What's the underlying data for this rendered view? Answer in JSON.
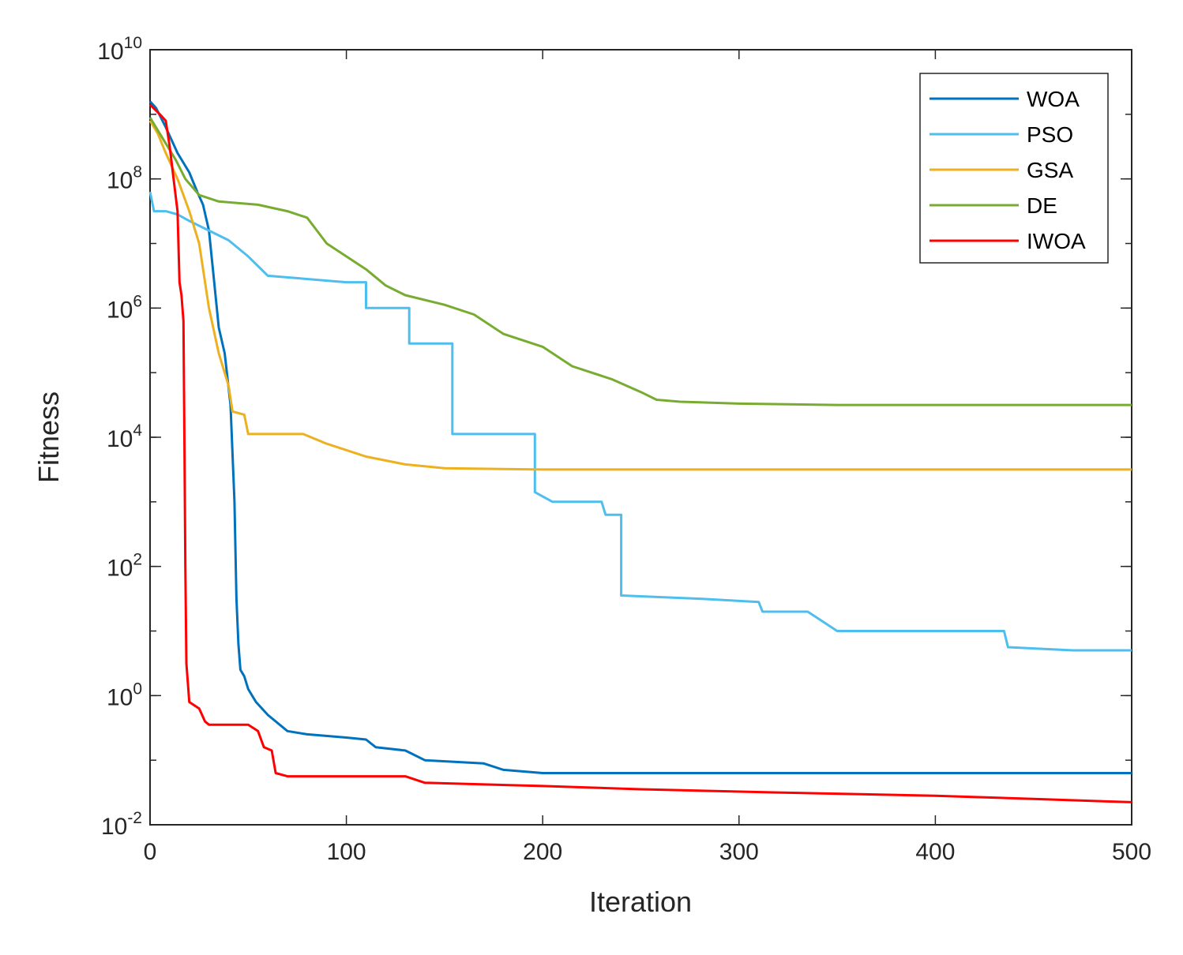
{
  "chart_data": {
    "type": "line",
    "title": "",
    "xlabel": "Iteration",
    "ylabel": "Fitness",
    "xlim": [
      0,
      500
    ],
    "ylim_exponents": [
      -2,
      10
    ],
    "y_scale": "log",
    "x_ticks": [
      0,
      100,
      200,
      300,
      400,
      500
    ],
    "y_ticks": [
      {
        "base": "10",
        "exp": "-2",
        "value": -2
      },
      {
        "base": "10",
        "exp": "0",
        "value": 0
      },
      {
        "base": "10",
        "exp": "2",
        "value": 2
      },
      {
        "base": "10",
        "exp": "4",
        "value": 4
      },
      {
        "base": "10",
        "exp": "6",
        "value": 6
      },
      {
        "base": "10",
        "exp": "8",
        "value": 8
      },
      {
        "base": "10",
        "exp": "10",
        "value": 10
      }
    ],
    "grid": false,
    "legend_position": "top-right",
    "series": [
      {
        "name": "WOA",
        "color": "#0072BD",
        "points": [
          [
            0,
            9.2
          ],
          [
            3,
            9.1
          ],
          [
            8,
            8.8
          ],
          [
            14,
            8.4
          ],
          [
            20,
            8.1
          ],
          [
            24,
            7.8
          ],
          [
            27,
            7.6
          ],
          [
            30,
            7.2
          ],
          [
            32,
            6.6
          ],
          [
            35,
            5.7
          ],
          [
            38,
            5.3
          ],
          [
            41,
            4.5
          ],
          [
            43,
            3.0
          ],
          [
            44,
            1.5
          ],
          [
            45,
            0.8
          ],
          [
            46,
            0.4
          ],
          [
            48,
            0.3
          ],
          [
            50,
            0.1
          ],
          [
            54,
            -0.1
          ],
          [
            60,
            -0.3
          ],
          [
            70,
            -0.55
          ],
          [
            80,
            -0.6
          ],
          [
            100,
            -0.65
          ],
          [
            110,
            -0.68
          ],
          [
            115,
            -0.8
          ],
          [
            130,
            -0.85
          ],
          [
            140,
            -1.0
          ],
          [
            170,
            -1.05
          ],
          [
            180,
            -1.15
          ],
          [
            200,
            -1.2
          ],
          [
            500,
            -1.2
          ]
        ]
      },
      {
        "name": "PSO",
        "color": "#4DBEEE",
        "points": [
          [
            0,
            7.8
          ],
          [
            2,
            7.5
          ],
          [
            8,
            7.5
          ],
          [
            14,
            7.45
          ],
          [
            20,
            7.35
          ],
          [
            30,
            7.2
          ],
          [
            40,
            7.05
          ],
          [
            50,
            6.8
          ],
          [
            60,
            6.5
          ],
          [
            100,
            6.4
          ],
          [
            110,
            6.4
          ],
          [
            110,
            6.0
          ],
          [
            132,
            6.0
          ],
          [
            132,
            5.45
          ],
          [
            154,
            5.45
          ],
          [
            154,
            4.05
          ],
          [
            196,
            4.05
          ],
          [
            196,
            3.15
          ],
          [
            205,
            3.0
          ],
          [
            230,
            3.0
          ],
          [
            232,
            2.8
          ],
          [
            240,
            2.8
          ],
          [
            240,
            1.55
          ],
          [
            280,
            1.5
          ],
          [
            310,
            1.45
          ],
          [
            312,
            1.3
          ],
          [
            335,
            1.3
          ],
          [
            340,
            1.2
          ],
          [
            350,
            1.0
          ],
          [
            435,
            1.0
          ],
          [
            437,
            0.75
          ],
          [
            470,
            0.7
          ],
          [
            500,
            0.7
          ]
        ]
      },
      {
        "name": "GSA",
        "color": "#EDB120",
        "points": [
          [
            0,
            8.9
          ],
          [
            4,
            8.7
          ],
          [
            8,
            8.4
          ],
          [
            14,
            8.0
          ],
          [
            20,
            7.5
          ],
          [
            25,
            7.0
          ],
          [
            30,
            6.0
          ],
          [
            35,
            5.3
          ],
          [
            40,
            4.8
          ],
          [
            42,
            4.4
          ],
          [
            48,
            4.35
          ],
          [
            50,
            4.05
          ],
          [
            78,
            4.05
          ],
          [
            90,
            3.9
          ],
          [
            110,
            3.7
          ],
          [
            130,
            3.58
          ],
          [
            150,
            3.52
          ],
          [
            200,
            3.5
          ],
          [
            500,
            3.5
          ]
        ]
      },
      {
        "name": "DE",
        "color": "#77AC30",
        "points": [
          [
            0,
            8.95
          ],
          [
            4,
            8.75
          ],
          [
            8,
            8.55
          ],
          [
            13,
            8.3
          ],
          [
            18,
            8.0
          ],
          [
            25,
            7.75
          ],
          [
            35,
            7.65
          ],
          [
            55,
            7.6
          ],
          [
            70,
            7.5
          ],
          [
            80,
            7.4
          ],
          [
            85,
            7.2
          ],
          [
            90,
            7.0
          ],
          [
            100,
            6.8
          ],
          [
            110,
            6.6
          ],
          [
            120,
            6.35
          ],
          [
            130,
            6.2
          ],
          [
            150,
            6.05
          ],
          [
            165,
            5.9
          ],
          [
            180,
            5.6
          ],
          [
            200,
            5.4
          ],
          [
            215,
            5.1
          ],
          [
            235,
            4.9
          ],
          [
            250,
            4.7
          ],
          [
            258,
            4.58
          ],
          [
            270,
            4.55
          ],
          [
            300,
            4.52
          ],
          [
            350,
            4.5
          ],
          [
            500,
            4.5
          ]
        ]
      },
      {
        "name": "IWOA",
        "color": "#FF0000",
        "points": [
          [
            0,
            9.15
          ],
          [
            5,
            9.0
          ],
          [
            8,
            8.9
          ],
          [
            10,
            8.5
          ],
          [
            12,
            8.0
          ],
          [
            14,
            7.5
          ],
          [
            15,
            6.4
          ],
          [
            16,
            6.2
          ],
          [
            17,
            5.8
          ],
          [
            17.5,
            4.0
          ],
          [
            18,
            2.0
          ],
          [
            18.5,
            0.5
          ],
          [
            20,
            -0.1
          ],
          [
            25,
            -0.2
          ],
          [
            28,
            -0.4
          ],
          [
            30,
            -0.45
          ],
          [
            50,
            -0.45
          ],
          [
            55,
            -0.55
          ],
          [
            58,
            -0.8
          ],
          [
            62,
            -0.85
          ],
          [
            64,
            -1.2
          ],
          [
            70,
            -1.25
          ],
          [
            130,
            -1.25
          ],
          [
            140,
            -1.35
          ],
          [
            200,
            -1.4
          ],
          [
            250,
            -1.45
          ],
          [
            320,
            -1.5
          ],
          [
            400,
            -1.55
          ],
          [
            450,
            -1.6
          ],
          [
            500,
            -1.65
          ]
        ]
      }
    ]
  }
}
